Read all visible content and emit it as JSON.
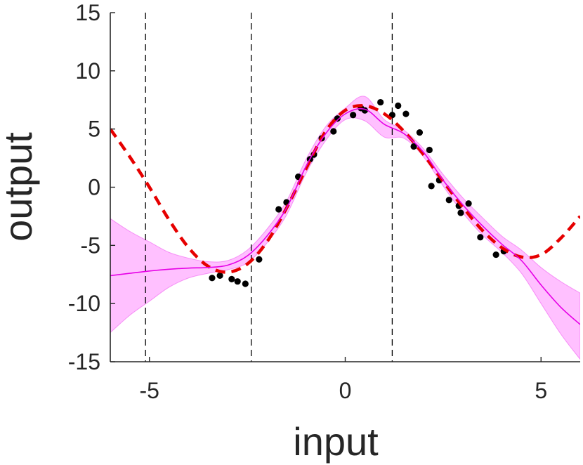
{
  "chart_data": {
    "type": "line",
    "title": "",
    "xlabel": "input",
    "ylabel": "output",
    "xlim": [
      -6,
      6
    ],
    "ylim": [
      -15,
      15
    ],
    "xticks": [
      -5,
      0,
      5
    ],
    "yticks": [
      -15,
      -10,
      -5,
      0,
      5,
      10,
      15
    ],
    "grid": false,
    "colors": {
      "mean": "#e600e6",
      "band": "#ff8cff",
      "truth": "#e60000",
      "points": "#000000",
      "axis": "#262626",
      "vlines": "#000000"
    },
    "vertical_dashed_lines_x": [
      -5.1,
      -2.4,
      1.2
    ],
    "series": [
      {
        "role": "true-function",
        "style": "red-dashed",
        "x": [
          -6,
          -5.5,
          -5,
          -4.5,
          -4,
          -3.5,
          -3,
          -2.5,
          -2,
          -1.5,
          -1,
          -0.5,
          0,
          0.5,
          1,
          1.5,
          2,
          2.5,
          3,
          3.5,
          4,
          4.5,
          5,
          5.5,
          6
        ],
        "y": [
          5.0,
          2.6,
          0.0,
          -2.8,
          -5.2,
          -6.8,
          -7.3,
          -6.6,
          -4.7,
          -1.8,
          1.6,
          4.8,
          6.6,
          7.0,
          6.3,
          4.8,
          2.8,
          0.5,
          -1.7,
          -3.7,
          -5.2,
          -6.0,
          -5.8,
          -4.4,
          -2.5
        ]
      },
      {
        "role": "posterior-mean",
        "style": "magenta-solid",
        "x": [
          -6,
          -5.5,
          -5,
          -4.5,
          -4,
          -3.5,
          -3,
          -2.5,
          -2,
          -1.5,
          -1,
          -0.5,
          0,
          0.5,
          1,
          1.5,
          2,
          2.5,
          3,
          3.5,
          4,
          4.5,
          5,
          5.5,
          6
        ],
        "y": [
          -7.6,
          -7.4,
          -7.2,
          -7.05,
          -6.95,
          -6.9,
          -6.7,
          -5.9,
          -4.2,
          -1.8,
          1.8,
          4.6,
          6.3,
          6.7,
          5.4,
          4.6,
          3.0,
          0.6,
          -1.5,
          -3.3,
          -4.9,
          -6.3,
          -8.4,
          -10.3,
          -11.8
        ]
      }
    ],
    "confidence_band": {
      "x": [
        -6,
        -5.5,
        -5,
        -4.5,
        -4,
        -3.5,
        -3,
        -2.5,
        -2,
        -1.5,
        -1,
        -0.5,
        0,
        0.5,
        1,
        1.5,
        2,
        2.5,
        3,
        3.5,
        4,
        4.5,
        5,
        5.5,
        6
      ],
      "upper": [
        -2.7,
        -3.8,
        -4.7,
        -5.6,
        -6.1,
        -6.4,
        -6.3,
        -5.4,
        -3.6,
        -1.2,
        2.4,
        5.2,
        6.8,
        7.8,
        5.8,
        4.9,
        3.3,
        1.1,
        -0.9,
        -2.6,
        -4.2,
        -5.4,
        -6.9,
        -8.1,
        -9.1
      ],
      "lower": [
        -12.5,
        -11.0,
        -9.8,
        -8.6,
        -7.8,
        -7.4,
        -7.1,
        -6.5,
        -4.8,
        -2.4,
        1.2,
        4.0,
        5.8,
        5.7,
        4.3,
        4.2,
        2.6,
        0.1,
        -2.2,
        -4.1,
        -5.6,
        -7.4,
        -10.0,
        -12.6,
        -14.8
      ]
    },
    "observations": {
      "x": [
        -3.4,
        -3.2,
        -2.9,
        -2.75,
        -2.55,
        -2.2,
        -1.7,
        -1.5,
        -1.2,
        -0.9,
        -0.8,
        -0.3,
        -0.2,
        0.2,
        0.5,
        0.9,
        1.2,
        1.35,
        1.55,
        1.9,
        1.75,
        2.15,
        2.2,
        2.4,
        2.65,
        2.9,
        2.95,
        3.15,
        3.45,
        3.85,
        4.05,
        0.4,
        -0.6
      ],
      "y": [
        -7.8,
        -7.6,
        -7.9,
        -8.1,
        -8.3,
        -6.2,
        -1.9,
        -1.3,
        0.9,
        2.4,
        2.8,
        4.8,
        5.9,
        6.2,
        6.6,
        7.3,
        6.2,
        7.0,
        6.3,
        4.7,
        3.5,
        3.2,
        0.1,
        0.6,
        -1.1,
        -1.6,
        -2.2,
        -1.4,
        -4.3,
        -5.8,
        -5.5,
        6.8,
        4.2
      ]
    }
  }
}
